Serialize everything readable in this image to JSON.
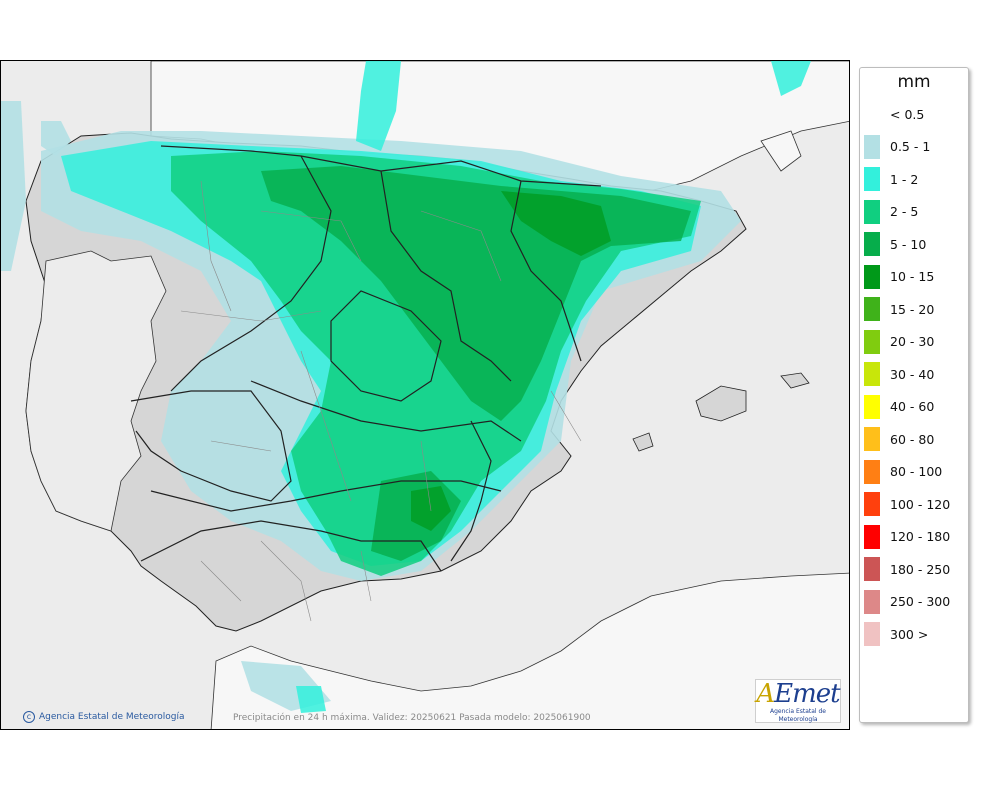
{
  "legend": {
    "unit": "mm",
    "items": [
      {
        "label": "< 0.5",
        "color": "#ffffff"
      },
      {
        "label": "0.5 - 1",
        "color": "#b3e0e4"
      },
      {
        "label": "1 - 2",
        "color": "#33f0dc"
      },
      {
        "label": "2 - 5",
        "color": "#10cf80"
      },
      {
        "label": "5 - 10",
        "color": "#06ad4b"
      },
      {
        "label": "10 - 15",
        "color": "#009919"
      },
      {
        "label": "15 - 20",
        "color": "#3fb21a"
      },
      {
        "label": "20 - 30",
        "color": "#80cc0f"
      },
      {
        "label": "30 - 40",
        "color": "#c8e60a"
      },
      {
        "label": "40 - 60",
        "color": "#ffff00"
      },
      {
        "label": "60 - 80",
        "color": "#ffbf1a"
      },
      {
        "label": "80 - 100",
        "color": "#ff7f14"
      },
      {
        "label": "100 - 120",
        "color": "#ff400d"
      },
      {
        "label": "120 - 180",
        "color": "#ff0000"
      },
      {
        "label": "180 - 250",
        "color": "#cc5555"
      },
      {
        "label": "250 - 300",
        "color": "#dd8888"
      },
      {
        "label": "300 >",
        "color": "#f0c2c2"
      }
    ]
  },
  "credit": "Agencia Estatal de Meteorología",
  "caption": "Precipitación en 24 h máxima. Validez: 20250621 Pasada modelo: 2025061900",
  "logo": {
    "brand_a": "A",
    "brand_rest": "Emet",
    "subtitle": "Agencia Estatal de Meteorología"
  }
}
